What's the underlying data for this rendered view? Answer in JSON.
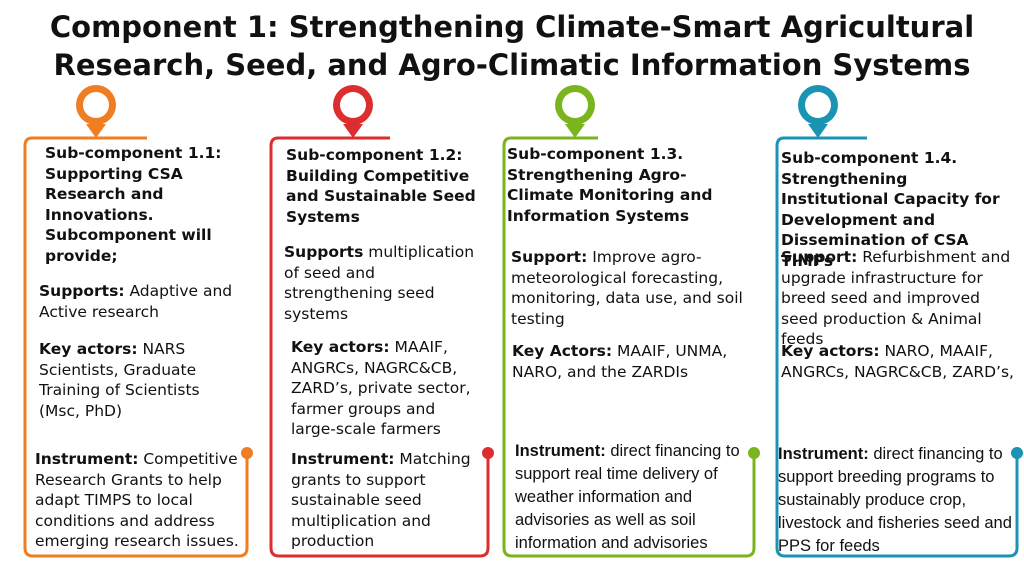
{
  "title": {
    "line1": "Component 1: Strengthening Climate-Smart Agricultural",
    "line2": "Research, Seed, and Agro-Climatic Information Systems"
  },
  "colors": {
    "col1": "#ef7d22",
    "col2": "#dc2e2e",
    "col3": "#7ab51d",
    "col4": "#1b93b3"
  },
  "columns": [
    {
      "heading": "Sub-component 1.1: Supporting CSA Research and Innovations. Subcomponent will provide;",
      "support_label": "Supports:",
      "support_text": " Adaptive and Active research",
      "actors_label": "Key actors:",
      "actors_text": " NARS Scientists,  Graduate Training of Scientists (Msc, PhD)",
      "instrument_label": "Instrument:",
      "instrument_text": " Competitive Research Grants to help adapt TIMPS to local conditions and address emerging research issues."
    },
    {
      "heading": "Sub-component 1.2: Building Competitive and Sustainable Seed Systems",
      "support_label": "Supports",
      "support_text": " multiplication of seed and strengthening seed systems",
      "actors_label": "Key actors:",
      "actors_text": " MAAIF, ANGRCs, NAGRC&CB, ZARD’s, private sector, farmer groups and large-scale farmers",
      "instrument_label": "Instrument:",
      "instrument_text": " Matching grants to support sustainable seed multiplication and production"
    },
    {
      "heading": "Sub-component 1.3. Strengthening Agro-Climate Monitoring and Information Systems",
      "support_label": "Support:",
      "support_text": " Improve agro-meteorological forecasting, monitoring, data use, and soil testing",
      "actors_label": "Key Actors:",
      "actors_text": " MAAIF,  UNMA, NARO, and the ZARDIs",
      "instrument_label": "Instrument:",
      "instrument_text": " direct financing to support real time delivery of weather information and advisories as well as soil information and advisories"
    },
    {
      "heading": "Sub-component 1.4. Strengthening Institutional Capacity for Development and Dissemination of CSA TIMPs",
      "support_label": "Support:",
      "support_text": " Refurbishment and upgrade infrastructure for breed seed and improved seed production & Animal feeds",
      "actors_label": "Key   actors:",
      "actors_text": "  NARO,  MAAIF, ANGRCs, NAGRC&CB, ZARD’s,",
      "instrument_label": "Instrument:",
      "instrument_text": " direct financing to support breeding programs to sustainably produce crop, livestock and fisheries seed and PPS for  feeds"
    }
  ]
}
